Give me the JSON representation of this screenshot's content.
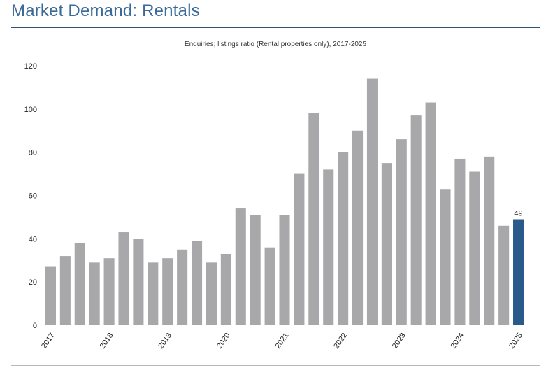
{
  "header": {
    "title": "Market Demand: Rentals"
  },
  "colors": {
    "title": "#3a6a97",
    "bar": "#a8a8aa",
    "highlight": "#2a5a8c"
  },
  "chart_data": {
    "type": "bar",
    "title": "Enquiries; listings ratio (Rental properties only), 2017-2025",
    "xlabel": "",
    "ylabel": "",
    "ylim": [
      0,
      120
    ],
    "yticks": [
      0,
      20,
      40,
      60,
      80,
      100,
      120
    ],
    "grid": false,
    "legend": "none",
    "values": [
      27,
      32,
      38,
      29,
      31,
      43,
      40,
      29,
      31,
      35,
      39,
      29,
      33,
      54,
      51,
      36,
      51,
      70,
      98,
      72,
      80,
      90,
      114,
      75,
      86,
      97,
      103,
      63,
      77,
      71,
      78,
      46,
      49
    ],
    "xtick_labels": [
      "2017",
      "2018",
      "2019",
      "2020",
      "2021",
      "2022",
      "2023",
      "2024",
      "2025"
    ],
    "xtick_bar_index": [
      0,
      4,
      8,
      12,
      16,
      20,
      24,
      28,
      32
    ],
    "highlight_index": 32,
    "data_labels": [
      {
        "index": 32,
        "text": "49"
      }
    ]
  }
}
